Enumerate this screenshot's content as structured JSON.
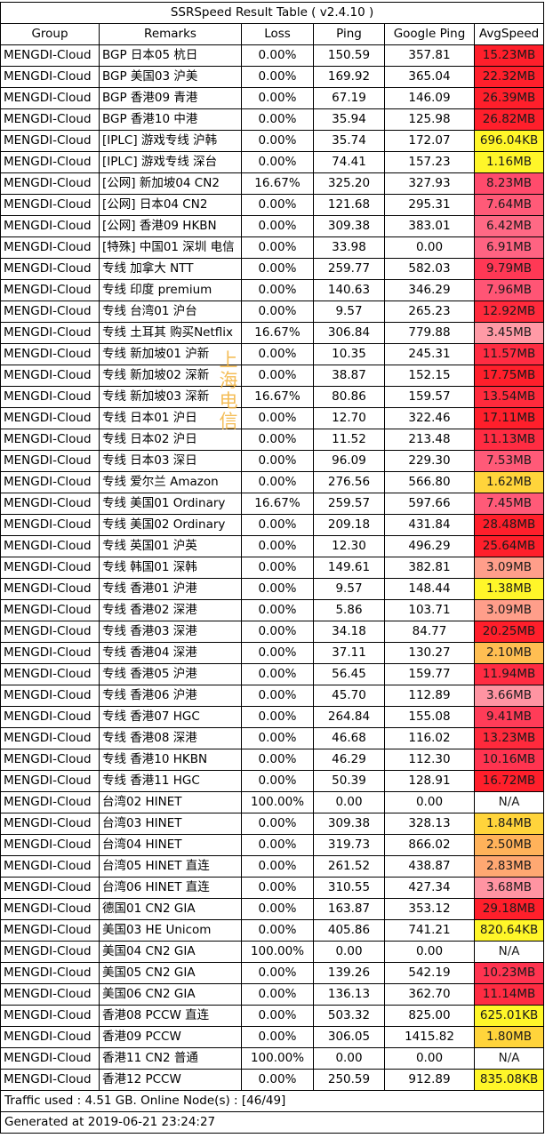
{
  "title": "SSRSpeed Result Table ( v2.4.10 )",
  "headers": [
    "Group",
    "Remarks",
    "Loss",
    "Ping",
    "Google Ping",
    "AvgSpeed"
  ],
  "rows": [
    {
      "group": "MENGDI-Cloud",
      "remarks": "BGP 日本05 杭日",
      "loss": "0.00%",
      "ping": "150.59",
      "gping": "357.81",
      "speed": "15.23MB",
      "color": "#ff1f2b"
    },
    {
      "group": "MENGDI-Cloud",
      "remarks": "BGP 美国03 沪美",
      "loss": "0.00%",
      "ping": "169.92",
      "gping": "365.04",
      "speed": "22.32MB",
      "color": "#ff1f2b"
    },
    {
      "group": "MENGDI-Cloud",
      "remarks": "BGP 香港09 青港",
      "loss": "0.00%",
      "ping": "67.19",
      "gping": "146.09",
      "speed": "26.39MB",
      "color": "#ff1f2b"
    },
    {
      "group": "MENGDI-Cloud",
      "remarks": "BGP 香港10 中港",
      "loss": "0.00%",
      "ping": "35.94",
      "gping": "125.98",
      "speed": "26.82MB",
      "color": "#ff1f2b"
    },
    {
      "group": "MENGDI-Cloud",
      "remarks": "[IPLC] 游戏专线 沪韩",
      "loss": "0.00%",
      "ping": "35.74",
      "gping": "172.07",
      "speed": "696.04KB",
      "color": "#fff629"
    },
    {
      "group": "MENGDI-Cloud",
      "remarks": "[IPLC] 游戏专线 深台",
      "loss": "0.00%",
      "ping": "74.41",
      "gping": "157.23",
      "speed": "1.16MB",
      "color": "#fff629"
    },
    {
      "group": "MENGDI-Cloud",
      "remarks": "[公网] 新加坡04 CN2",
      "loss": "16.67%",
      "ping": "325.20",
      "gping": "327.93",
      "speed": "8.23MB",
      "color": "#ff4b6c"
    },
    {
      "group": "MENGDI-Cloud",
      "remarks": "[公网] 日本04 CN2",
      "loss": "0.00%",
      "ping": "121.68",
      "gping": "295.31",
      "speed": "7.64MB",
      "color": "#ff5a78"
    },
    {
      "group": "MENGDI-Cloud",
      "remarks": "[公网] 香港09 HKBN",
      "loss": "0.00%",
      "ping": "309.38",
      "gping": "383.01",
      "speed": "6.42MB",
      "color": "#ff6985"
    },
    {
      "group": "MENGDI-Cloud",
      "remarks": "[特殊] 中国01 深圳 电信",
      "loss": "0.00%",
      "ping": "33.98",
      "gping": "0.00",
      "speed": "6.91MB",
      "color": "#ff6382"
    },
    {
      "group": "MENGDI-Cloud",
      "remarks": "专线 加拿大 NTT",
      "loss": "0.00%",
      "ping": "259.77",
      "gping": "582.03",
      "speed": "9.79MB",
      "color": "#ff3855"
    },
    {
      "group": "MENGDI-Cloud",
      "remarks": "专线 印度 premium",
      "loss": "0.00%",
      "ping": "140.63",
      "gping": "346.29",
      "speed": "7.96MB",
      "color": "#ff5575"
    },
    {
      "group": "MENGDI-Cloud",
      "remarks": "专线 台湾01 沪台",
      "loss": "0.00%",
      "ping": "9.57",
      "gping": "265.23",
      "speed": "12.92MB",
      "color": "#ff2a3c"
    },
    {
      "group": "MENGDI-Cloud",
      "remarks": "专线 土耳其 购买Netflix",
      "loss": "16.67%",
      "ping": "306.84",
      "gping": "779.88",
      "speed": "3.45MB",
      "color": "#ff9aa6"
    },
    {
      "group": "MENGDI-Cloud",
      "remarks": "专线 新加坡01 沪新",
      "loss": "0.00%",
      "ping": "10.35",
      "gping": "245.31",
      "speed": "11.57MB",
      "color": "#ff2c42"
    },
    {
      "group": "MENGDI-Cloud",
      "remarks": "专线 新加坡02 深新",
      "loss": "0.00%",
      "ping": "38.87",
      "gping": "152.15",
      "speed": "17.75MB",
      "color": "#ff1f2b"
    },
    {
      "group": "MENGDI-Cloud",
      "remarks": "专线 新加坡03 深新",
      "loss": "16.67%",
      "ping": "80.86",
      "gping": "159.57",
      "speed": "13.54MB",
      "color": "#ff2a3c"
    },
    {
      "group": "MENGDI-Cloud",
      "remarks": "专线 日本01 沪日",
      "loss": "0.00%",
      "ping": "12.70",
      "gping": "322.46",
      "speed": "17.11MB",
      "color": "#ff1f2b"
    },
    {
      "group": "MENGDI-Cloud",
      "remarks": "专线 日本02 沪日",
      "loss": "0.00%",
      "ping": "11.52",
      "gping": "213.48",
      "speed": "11.13MB",
      "color": "#ff2c42"
    },
    {
      "group": "MENGDI-Cloud",
      "remarks": "专线 日本03 深日",
      "loss": "0.00%",
      "ping": "96.09",
      "gping": "229.30",
      "speed": "7.53MB",
      "color": "#ff5a78"
    },
    {
      "group": "MENGDI-Cloud",
      "remarks": "专线 爱尔兰 Amazon",
      "loss": "0.00%",
      "ping": "276.56",
      "gping": "566.80",
      "speed": "1.62MB",
      "color": "#ffd43b"
    },
    {
      "group": "MENGDI-Cloud",
      "remarks": "专线 美国01 Ordinary",
      "loss": "16.67%",
      "ping": "259.57",
      "gping": "597.66",
      "speed": "7.45MB",
      "color": "#ff5a78"
    },
    {
      "group": "MENGDI-Cloud",
      "remarks": "专线 美国02 Ordinary",
      "loss": "0.00%",
      "ping": "209.18",
      "gping": "431.84",
      "speed": "28.48MB",
      "color": "#ff1f2b"
    },
    {
      "group": "MENGDI-Cloud",
      "remarks": "专线 英国01 沪英",
      "loss": "0.00%",
      "ping": "12.30",
      "gping": "496.29",
      "speed": "25.64MB",
      "color": "#ff1f2b"
    },
    {
      "group": "MENGDI-Cloud",
      "remarks": "专线 韩国01 深韩",
      "loss": "0.00%",
      "ping": "149.61",
      "gping": "382.81",
      "speed": "3.09MB",
      "color": "#ff9e8a"
    },
    {
      "group": "MENGDI-Cloud",
      "remarks": "专线 香港01 沪港",
      "loss": "0.00%",
      "ping": "9.57",
      "gping": "148.44",
      "speed": "1.38MB",
      "color": "#fff629"
    },
    {
      "group": "MENGDI-Cloud",
      "remarks": "专线 香港02 深港",
      "loss": "0.00%",
      "ping": "5.86",
      "gping": "103.71",
      "speed": "3.09MB",
      "color": "#ff9e8a"
    },
    {
      "group": "MENGDI-Cloud",
      "remarks": "专线 香港03 深港",
      "loss": "0.00%",
      "ping": "34.18",
      "gping": "84.77",
      "speed": "20.25MB",
      "color": "#ff1f2b"
    },
    {
      "group": "MENGDI-Cloud",
      "remarks": "专线 香港04 深港",
      "loss": "0.00%",
      "ping": "37.11",
      "gping": "130.27",
      "speed": "2.10MB",
      "color": "#ffbe52"
    },
    {
      "group": "MENGDI-Cloud",
      "remarks": "专线 香港05 沪港",
      "loss": "0.00%",
      "ping": "56.45",
      "gping": "159.77",
      "speed": "11.94MB",
      "color": "#ff2c42"
    },
    {
      "group": "MENGDI-Cloud",
      "remarks": "专线 香港06 沪港",
      "loss": "0.00%",
      "ping": "45.70",
      "gping": "112.89",
      "speed": "3.66MB",
      "color": "#ff94a2"
    },
    {
      "group": "MENGDI-Cloud",
      "remarks": "专线 香港07 HGC",
      "loss": "0.00%",
      "ping": "264.84",
      "gping": "155.08",
      "speed": "9.41MB",
      "color": "#ff3c58"
    },
    {
      "group": "MENGDI-Cloud",
      "remarks": "专线 香港08 深港",
      "loss": "0.00%",
      "ping": "46.68",
      "gping": "116.02",
      "speed": "13.23MB",
      "color": "#ff2a3c"
    },
    {
      "group": "MENGDI-Cloud",
      "remarks": "专线 香港10 HKBN",
      "loss": "0.00%",
      "ping": "46.29",
      "gping": "112.30",
      "speed": "10.16MB",
      "color": "#ff3450"
    },
    {
      "group": "MENGDI-Cloud",
      "remarks": "专线 香港11 HGC",
      "loss": "0.00%",
      "ping": "50.39",
      "gping": "128.91",
      "speed": "16.72MB",
      "color": "#ff1f2b"
    },
    {
      "group": "MENGDI-Cloud",
      "remarks": "台湾02 HINET",
      "loss": "100.00%",
      "ping": "0.00",
      "gping": "0.00",
      "speed": "N/A",
      "color": "#ffffff"
    },
    {
      "group": "MENGDI-Cloud",
      "remarks": "台湾03 HINET",
      "loss": "0.00%",
      "ping": "309.38",
      "gping": "328.13",
      "speed": "1.84MB",
      "color": "#ffd43b"
    },
    {
      "group": "MENGDI-Cloud",
      "remarks": "台湾04 HINET",
      "loss": "0.00%",
      "ping": "319.73",
      "gping": "866.02",
      "speed": "2.50MB",
      "color": "#ffb25a"
    },
    {
      "group": "MENGDI-Cloud",
      "remarks": "台湾05 HINET 直连",
      "loss": "0.00%",
      "ping": "261.52",
      "gping": "438.87",
      "speed": "2.83MB",
      "color": "#ffa872"
    },
    {
      "group": "MENGDI-Cloud",
      "remarks": "台湾06 HINET 直连",
      "loss": "0.00%",
      "ping": "310.55",
      "gping": "427.34",
      "speed": "3.68MB",
      "color": "#ff94a2"
    },
    {
      "group": "MENGDI-Cloud",
      "remarks": "德国01 CN2 GIA",
      "loss": "0.00%",
      "ping": "163.87",
      "gping": "353.12",
      "speed": "29.18MB",
      "color": "#ff1f2b"
    },
    {
      "group": "MENGDI-Cloud",
      "remarks": "美国03 HE Unicom",
      "loss": "0.00%",
      "ping": "405.86",
      "gping": "741.21",
      "speed": "820.64KB",
      "color": "#fff629"
    },
    {
      "group": "MENGDI-Cloud",
      "remarks": "美国04 CN2 GIA",
      "loss": "100.00%",
      "ping": "0.00",
      "gping": "0.00",
      "speed": "N/A",
      "color": "#ffffff"
    },
    {
      "group": "MENGDI-Cloud",
      "remarks": "美国05 CN2 GIA",
      "loss": "0.00%",
      "ping": "139.26",
      "gping": "542.19",
      "speed": "10.23MB",
      "color": "#ff3450"
    },
    {
      "group": "MENGDI-Cloud",
      "remarks": "美国06 CN2 GIA",
      "loss": "0.00%",
      "ping": "136.13",
      "gping": "362.70",
      "speed": "11.14MB",
      "color": "#ff2c42"
    },
    {
      "group": "MENGDI-Cloud",
      "remarks": "香港08 PCCW 直连",
      "loss": "0.00%",
      "ping": "503.32",
      "gping": "825.00",
      "speed": "625.01KB",
      "color": "#fff629"
    },
    {
      "group": "MENGDI-Cloud",
      "remarks": "香港09 PCCW",
      "loss": "0.00%",
      "ping": "306.05",
      "gping": "1415.82",
      "speed": "1.80MB",
      "color": "#ffd43b"
    },
    {
      "group": "MENGDI-Cloud",
      "remarks": "香港11 CN2 普通",
      "loss": "100.00%",
      "ping": "0.00",
      "gping": "0.00",
      "speed": "N/A",
      "color": "#ffffff"
    },
    {
      "group": "MENGDI-Cloud",
      "remarks": "香港12 PCCW",
      "loss": "0.00%",
      "ping": "250.59",
      "gping": "912.89",
      "speed": "835.08KB",
      "color": "#fff629"
    }
  ],
  "footer": {
    "traffic": "Traffic used : 4.51 GB. Online Node(s) : [46/49]",
    "generated": "Generated at 2019-06-21 23:24:27"
  },
  "watermark": [
    "上",
    "海",
    "电",
    "信"
  ]
}
